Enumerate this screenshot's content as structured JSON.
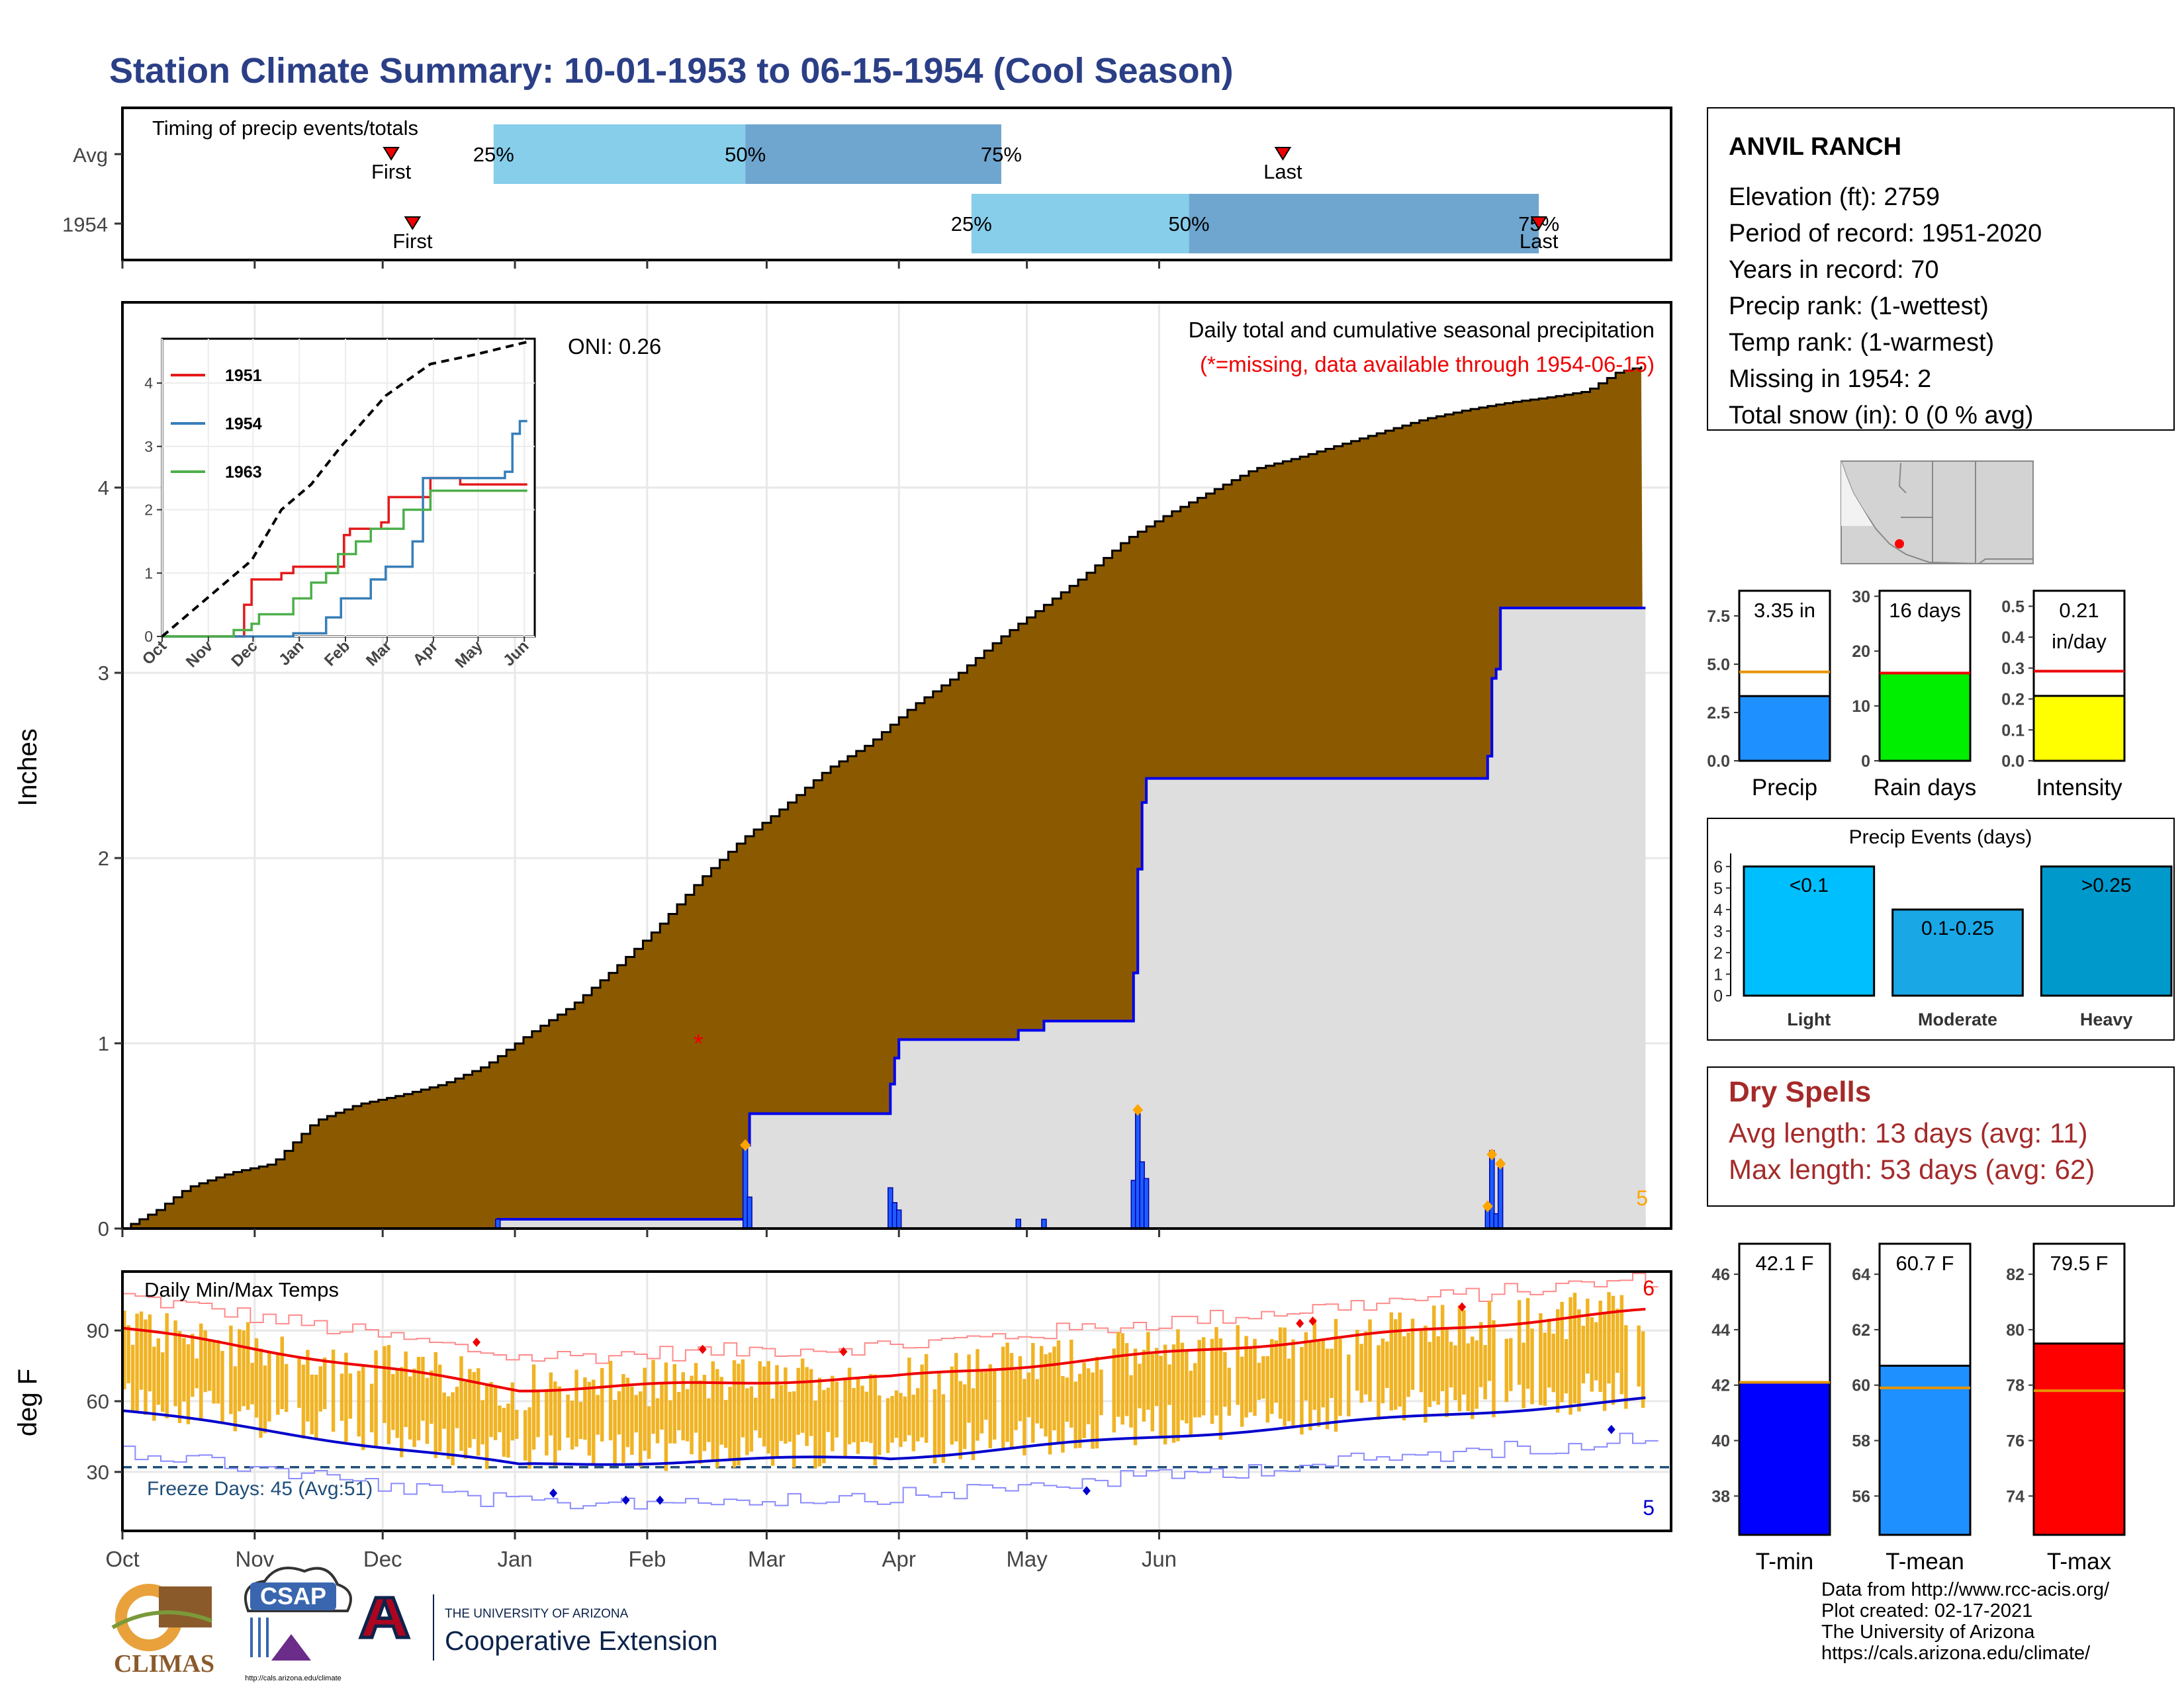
{
  "title": "Station Climate Summary: 10-01-1953 to 06-15-1954 (Cool Season)",
  "colors": {
    "title": "#2b3f87",
    "precip_fill": "#8b5a00",
    "season_fill": "#dedede",
    "season_line": "#0000ee",
    "timing_light": "#87ceeb",
    "timing_dark": "#6fa6cf",
    "temp_bar": "#f0b323",
    "tmax_line": "#ee0000",
    "tmin_line": "#0000cc",
    "dry_spells": "#a52a2a",
    "freeze_line": "#1f4e79"
  },
  "month_labels": [
    "Oct",
    "Nov",
    "Dec",
    "Jan",
    "Feb",
    "Mar",
    "Apr",
    "May",
    "Jun"
  ],
  "timing": {
    "title": "Timing of precip events/totals",
    "rows": [
      {
        "label": "Avg",
        "first_label": "First",
        "last_label": "Last",
        "first_day": 63,
        "last_day": 272,
        "p25": 87,
        "p50": 146,
        "p75": 206,
        "p25_label": "25%",
        "p50_label": "50%",
        "p75_label": "75%"
      },
      {
        "label": "1954",
        "first_label": "First",
        "last_label": "Last",
        "first_day": 68,
        "last_day": 332,
        "p25": 199,
        "p50": 250,
        "p75": 332,
        "p25_label": "25%",
        "p50_label": "50%",
        "p75_label": "75%"
      }
    ]
  },
  "chart_data": [
    {
      "type": "area",
      "name": "main-precip",
      "title": "Daily total and cumulative seasonal precipitation",
      "subtitle": "(*=missing, data available through 1954-06-15)",
      "ylabel": "Inches",
      "ylim": [
        0,
        5
      ],
      "yticks": [
        0,
        1,
        2,
        3,
        4
      ],
      "oni_label": "ONI: 0.26",
      "corner_count": "5",
      "avg_cumulative": [
        [
          0,
          0.0
        ],
        [
          8,
          0.1
        ],
        [
          15,
          0.22
        ],
        [
          25,
          0.3
        ],
        [
          35,
          0.35
        ],
        [
          45,
          0.58
        ],
        [
          55,
          0.67
        ],
        [
          65,
          0.72
        ],
        [
          75,
          0.78
        ],
        [
          85,
          0.88
        ],
        [
          95,
          1.05
        ],
        [
          105,
          1.2
        ],
        [
          115,
          1.4
        ],
        [
          125,
          1.62
        ],
        [
          135,
          1.88
        ],
        [
          145,
          2.1
        ],
        [
          155,
          2.28
        ],
        [
          165,
          2.48
        ],
        [
          175,
          2.62
        ],
        [
          185,
          2.82
        ],
        [
          195,
          2.98
        ],
        [
          205,
          3.18
        ],
        [
          215,
          3.35
        ],
        [
          225,
          3.52
        ],
        [
          235,
          3.72
        ],
        [
          245,
          3.86
        ],
        [
          255,
          3.98
        ],
        [
          265,
          4.1
        ],
        [
          275,
          4.16
        ],
        [
          285,
          4.23
        ],
        [
          295,
          4.3
        ],
        [
          305,
          4.37
        ],
        [
          315,
          4.42
        ],
        [
          325,
          4.46
        ],
        [
          335,
          4.49
        ],
        [
          343,
          4.52
        ],
        [
          350,
          4.62
        ],
        [
          357,
          4.66
        ]
      ],
      "season_cumulative": [
        [
          0,
          0.0
        ],
        [
          87,
          0.0
        ],
        [
          88,
          0.05
        ],
        [
          145,
          0.05
        ],
        [
          146,
          0.45
        ],
        [
          147,
          0.62
        ],
        [
          179,
          0.62
        ],
        [
          180,
          0.78
        ],
        [
          181,
          0.92
        ],
        [
          182,
          1.02
        ],
        [
          209,
          1.02
        ],
        [
          210,
          1.07
        ],
        [
          216,
          1.12
        ],
        [
          236,
          1.12
        ],
        [
          237,
          1.38
        ],
        [
          238,
          1.94
        ],
        [
          239,
          2.3
        ],
        [
          240,
          2.43
        ],
        [
          319,
          2.43
        ],
        [
          320,
          2.55
        ],
        [
          321,
          2.97
        ],
        [
          322,
          3.02
        ],
        [
          323,
          3.35
        ],
        [
          357,
          3.35
        ]
      ],
      "daily_bars": [
        [
          88,
          0.05
        ],
        [
          146,
          0.45
        ],
        [
          147,
          0.17
        ],
        [
          180,
          0.22
        ],
        [
          181,
          0.14
        ],
        [
          182,
          0.1
        ],
        [
          210,
          0.05
        ],
        [
          216,
          0.05
        ],
        [
          237,
          0.26
        ],
        [
          238,
          0.62
        ],
        [
          239,
          0.36
        ],
        [
          240,
          0.27
        ],
        [
          320,
          0.12
        ],
        [
          321,
          0.42
        ],
        [
          322,
          0.08
        ],
        [
          323,
          0.33
        ]
      ],
      "orange_marks": [
        [
          146,
          0.45
        ],
        [
          238,
          0.64
        ],
        [
          320,
          0.12
        ],
        [
          321,
          0.4
        ],
        [
          323,
          0.35
        ]
      ],
      "missing_marks": [
        [
          135,
          1.0
        ]
      ]
    },
    {
      "type": "line",
      "name": "inset-cumulative",
      "categories": [
        "Oct",
        "Nov",
        "Dec",
        "Jan",
        "Feb",
        "Mar",
        "Apr",
        "May",
        "Jun"
      ],
      "yticks": [
        0,
        1,
        2,
        3,
        4
      ],
      "ylim": [
        0,
        4.7
      ],
      "legend_placement": "top-left",
      "series": [
        {
          "name": "1951",
          "color": "#e41a1c",
          "values": [
            [
              0,
              0
            ],
            [
              45,
              0
            ],
            [
              55,
              0.5
            ],
            [
              60,
              0.9
            ],
            [
              65,
              0.9
            ],
            [
              80,
              1.0
            ],
            [
              88,
              1.1
            ],
            [
              105,
              1.1
            ],
            [
              120,
              1.1
            ],
            [
              122,
              1.6
            ],
            [
              124,
              1.6
            ],
            [
              126,
              1.7
            ],
            [
              145,
              1.7
            ],
            [
              147,
              1.8
            ],
            [
              150,
              1.8
            ],
            [
              152,
              2.2
            ],
            [
              160,
              2.2
            ],
            [
              175,
              2.2
            ],
            [
              180,
              2.5
            ],
            [
              195,
              2.5
            ],
            [
              200,
              2.4
            ],
            [
              245,
              2.4
            ]
          ]
        },
        {
          "name": "1954",
          "color": "#377eb8",
          "values": [
            [
              0,
              0
            ],
            [
              87,
              0
            ],
            [
              88,
              0.05
            ],
            [
              100,
              0.05
            ],
            [
              110,
              0.3
            ],
            [
              120,
              0.6
            ],
            [
              130,
              0.6
            ],
            [
              140,
              0.9
            ],
            [
              150,
              1.1
            ],
            [
              160,
              1.1
            ],
            [
              168,
              1.5
            ],
            [
              172,
              1.5
            ],
            [
              175,
              2.5
            ],
            [
              180,
              2.5
            ],
            [
              195,
              2.5
            ],
            [
              210,
              2.5
            ],
            [
              230,
              2.6
            ],
            [
              235,
              3.2
            ],
            [
              240,
              3.4
            ],
            [
              245,
              3.4
            ]
          ]
        },
        {
          "name": "1963",
          "color": "#4daf4a",
          "values": [
            [
              0,
              0
            ],
            [
              45,
              0
            ],
            [
              48,
              0.1
            ],
            [
              60,
              0.2
            ],
            [
              65,
              0.35
            ],
            [
              80,
              0.35
            ],
            [
              88,
              0.6
            ],
            [
              100,
              0.85
            ],
            [
              110,
              1.0
            ],
            [
              118,
              1.3
            ],
            [
              130,
              1.5
            ],
            [
              140,
              1.7
            ],
            [
              160,
              1.7
            ],
            [
              162,
              2.0
            ],
            [
              175,
              2.0
            ],
            [
              180,
              2.3
            ],
            [
              245,
              2.3
            ]
          ]
        },
        {
          "name": "avg",
          "color": "#000000",
          "dashed": true,
          "values": [
            [
              0,
              0
            ],
            [
              30,
              0.6
            ],
            [
              60,
              1.2
            ],
            [
              80,
              2.0
            ],
            [
              100,
              2.4
            ],
            [
              120,
              3.0
            ],
            [
              150,
              3.8
            ],
            [
              180,
              4.3
            ],
            [
              210,
              4.45
            ],
            [
              245,
              4.65
            ]
          ]
        }
      ]
    },
    {
      "type": "bar",
      "name": "temps",
      "title": "Daily Min/Max Temps",
      "ylabel": "deg F",
      "ylim": [
        5,
        115
      ],
      "yticks": [
        30,
        60,
        90
      ],
      "freeze_label": "Freeze Days: 45 (Avg:51)",
      "freeze_line": 32,
      "count_max": "6",
      "count_min": "5"
    },
    {
      "type": "bar",
      "name": "precip-summary",
      "panels": [
        {
          "label": "Precip",
          "value_label": "3.35 in",
          "value": 3.35,
          "avg": 4.6,
          "ylim": [
            0,
            8.8
          ],
          "yticks": [
            "0.0",
            "2.5",
            "5.0",
            "7.5"
          ],
          "color": "#1e90ff"
        },
        {
          "label": "Rain days",
          "value_label": "16 days",
          "value": 16,
          "avg": 16,
          "ylim": [
            0,
            31
          ],
          "yticks": [
            "0",
            "10",
            "20",
            "30"
          ],
          "color": "#00ee00"
        },
        {
          "label": "Intensity",
          "value_label": "0.21",
          "value_label2": "in/day",
          "value": 0.21,
          "avg": 0.29,
          "ylim": [
            0,
            0.55
          ],
          "yticks": [
            "0.0",
            "0.1",
            "0.2",
            "0.3",
            "0.4",
            "0.5"
          ],
          "color": "#ffff00"
        }
      ]
    },
    {
      "type": "bar",
      "name": "precip-events",
      "title": "Precip Events (days)",
      "categories": [
        "Light",
        "Moderate",
        "Heavy"
      ],
      "values": [
        6,
        4,
        6
      ],
      "bar_labels": [
        "<0.1",
        "0.1-0.25",
        ">0.25"
      ],
      "colors": [
        "#00bfff",
        "#1aa7e6",
        "#0099cc"
      ],
      "ylim": [
        0,
        6.3
      ],
      "yticks": [
        0,
        1,
        2,
        3,
        4,
        5,
        6
      ]
    },
    {
      "type": "bar",
      "name": "temp-summary",
      "panels": [
        {
          "label": "T-min",
          "value_label": "42.1 F",
          "value": 42.1,
          "avg": 42.1,
          "ylim": [
            36.6,
            47.1
          ],
          "yticks": [
            "38",
            "40",
            "42",
            "44",
            "46"
          ],
          "color": "#0000ff"
        },
        {
          "label": "T-mean",
          "value_label": "60.7 F",
          "value": 60.7,
          "avg": 59.9,
          "ylim": [
            54.6,
            65.1
          ],
          "yticks": [
            "56",
            "58",
            "60",
            "62",
            "64"
          ],
          "color": "#1e90ff"
        },
        {
          "label": "T-max",
          "value_label": "79.5 F",
          "value": 79.5,
          "avg": 77.8,
          "ylim": [
            72.6,
            83.1
          ],
          "yticks": [
            "74",
            "76",
            "78",
            "80",
            "82"
          ],
          "color": "#ff0000"
        }
      ]
    }
  ],
  "station": {
    "name": "ANVIL RANCH",
    "lines": [
      "Elevation (ft): 2759",
      "Period of record: 1951-2020",
      "Years in record: 70",
      "Precip rank:  (1-wettest)",
      "Temp rank:  (1-warmest)",
      "Missing in 1954: 2",
      "Total snow (in): 0 (0 % avg)"
    ]
  },
  "dry_spells": {
    "title": "Dry Spells",
    "avg_line": "Avg length: 13 days (avg: 11)",
    "max_line": "Max length: 53 days (avg: 62)"
  },
  "footer": {
    "lines": [
      "Data from http://www.rcc-acis.org/",
      "Plot created: 02-17-2021",
      "The University of Arizona",
      "https://cals.arizona.edu/climate/"
    ],
    "climas_label": "CLIMAS",
    "csap_label": "CSAP",
    "csap_url": "http://cals.arizona.edu/climate",
    "ua_top": "THE UNIVERSITY OF ARIZONA",
    "ua_bottom": "Cooperative Extension"
  }
}
